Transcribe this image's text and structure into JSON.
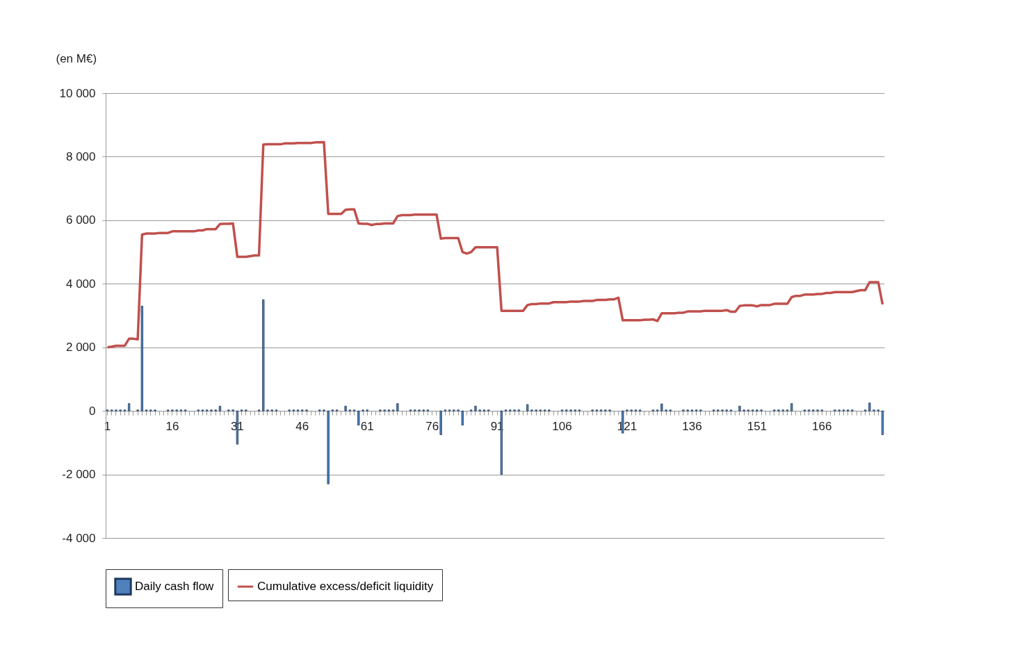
{
  "chart_data": {
    "type": "bar",
    "ylabel": "(en M€)",
    "categories": [
      "1",
      null,
      null,
      null,
      null,
      null,
      null,
      null,
      null,
      null,
      null,
      null,
      null,
      null,
      null,
      "16",
      null,
      null,
      null,
      null,
      null,
      null,
      null,
      null,
      null,
      null,
      null,
      null,
      null,
      null,
      "31",
      null,
      null,
      null,
      null,
      null,
      null,
      null,
      null,
      null,
      null,
      null,
      null,
      null,
      null,
      "46",
      null,
      null,
      null,
      null,
      null,
      null,
      null,
      null,
      null,
      null,
      null,
      null,
      null,
      null,
      "61",
      null,
      null,
      null,
      null,
      null,
      null,
      null,
      null,
      null,
      null,
      null,
      null,
      null,
      null,
      "76",
      null,
      null,
      null,
      null,
      null,
      null,
      null,
      null,
      null,
      null,
      null,
      null,
      null,
      null,
      "91",
      null,
      null,
      null,
      null,
      null,
      null,
      null,
      null,
      null,
      null,
      null,
      null,
      null,
      null,
      "106",
      null,
      null,
      null,
      null,
      null,
      null,
      null,
      null,
      null,
      null,
      null,
      null,
      null,
      null,
      "121",
      null,
      null,
      null,
      null,
      null,
      null,
      null,
      null,
      null,
      null,
      null,
      null,
      null,
      null,
      "136",
      null,
      null,
      null,
      null,
      null,
      null,
      null,
      null,
      null,
      null,
      null,
      null,
      null,
      null,
      "151",
      null,
      null,
      null,
      null,
      null,
      null,
      null,
      null,
      null,
      null,
      null,
      null,
      null,
      null,
      "166",
      null,
      null,
      null,
      null,
      null,
      null,
      null,
      null,
      null,
      null,
      null,
      null,
      null,
      null
    ],
    "series": [
      {
        "name": "Daily cash flow",
        "color": "#4f81bd",
        "values": [
          30,
          30,
          30,
          30,
          30,
          230,
          null,
          30,
          3300,
          30,
          30,
          30,
          null,
          null,
          30,
          30,
          30,
          30,
          30,
          null,
          null,
          30,
          30,
          30,
          30,
          30,
          150,
          null,
          30,
          30,
          -1050,
          30,
          30,
          null,
          null,
          30,
          3500,
          30,
          30,
          30,
          null,
          null,
          30,
          30,
          30,
          30,
          30,
          null,
          null,
          30,
          30,
          -2300,
          30,
          30,
          null,
          150,
          30,
          30,
          -450,
          30,
          30,
          null,
          null,
          30,
          30,
          30,
          30,
          230,
          null,
          null,
          30,
          30,
          30,
          30,
          30,
          null,
          null,
          -750,
          30,
          30,
          30,
          30,
          -450,
          null,
          30,
          150,
          30,
          30,
          30,
          null,
          null,
          -2000,
          30,
          30,
          30,
          30,
          null,
          200,
          30,
          30,
          30,
          30,
          30,
          null,
          null,
          30,
          30,
          30,
          30,
          30,
          null,
          null,
          30,
          30,
          30,
          30,
          30,
          null,
          null,
          -700,
          30,
          30,
          30,
          30,
          null,
          null,
          30,
          30,
          220,
          30,
          30,
          null,
          null,
          30,
          30,
          30,
          30,
          30,
          null,
          null,
          30,
          30,
          30,
          30,
          30,
          null,
          150,
          30,
          30,
          30,
          30,
          30,
          null,
          null,
          30,
          30,
          30,
          30,
          230,
          null,
          null,
          30,
          30,
          30,
          30,
          30,
          null,
          null,
          30,
          30,
          30,
          30,
          30,
          null,
          null,
          30,
          250,
          30,
          30,
          -750
        ]
      },
      {
        "name": "Cumulative excess/deficit liquidity",
        "type": "line",
        "color": "#c0504d",
        "values": [
          2000,
          2020,
          2050,
          2050,
          2050,
          2270,
          2270,
          2250,
          5550,
          5580,
          5580,
          5580,
          5600,
          5600,
          5600,
          5650,
          5650,
          5650,
          5650,
          5650,
          5650,
          5680,
          5680,
          5720,
          5720,
          5720,
          5880,
          5890,
          5890,
          5900,
          4850,
          4850,
          4850,
          4870,
          4890,
          4890,
          8380,
          8390,
          8390,
          8390,
          8390,
          8420,
          8420,
          8420,
          8430,
          8430,
          8430,
          8430,
          8450,
          8450,
          8460,
          6200,
          6200,
          6200,
          6200,
          6330,
          6340,
          6340,
          5900,
          5890,
          5890,
          5850,
          5880,
          5880,
          5900,
          5900,
          5900,
          6130,
          6160,
          6160,
          6160,
          6180,
          6180,
          6180,
          6180,
          6180,
          6180,
          5420,
          5440,
          5440,
          5440,
          5440,
          5000,
          4950,
          5000,
          5150,
          5150,
          5150,
          5150,
          5150,
          5150,
          3150,
          3150,
          3150,
          3150,
          3150,
          3150,
          3330,
          3360,
          3360,
          3380,
          3380,
          3380,
          3420,
          3420,
          3420,
          3420,
          3440,
          3440,
          3440,
          3460,
          3460,
          3460,
          3490,
          3490,
          3490,
          3510,
          3510,
          3560,
          2850,
          2850,
          2850,
          2850,
          2850,
          2870,
          2870,
          2880,
          2830,
          3070,
          3070,
          3070,
          3070,
          3090,
          3090,
          3130,
          3130,
          3130,
          3130,
          3150,
          3150,
          3150,
          3150,
          3150,
          3170,
          3120,
          3120,
          3300,
          3320,
          3320,
          3320,
          3290,
          3330,
          3330,
          3330,
          3370,
          3370,
          3370,
          3370,
          3580,
          3620,
          3620,
          3660,
          3660,
          3660,
          3680,
          3680,
          3710,
          3710,
          3740,
          3740,
          3740,
          3740,
          3740,
          3770,
          3800,
          3800,
          4050,
          4050,
          4050,
          3350
        ]
      }
    ],
    "ylim": [
      -4000,
      10000
    ],
    "yticks": [
      {
        "value": -4000,
        "label": "-4 000"
      },
      {
        "value": -2000,
        "label": "-2 000"
      },
      0,
      {
        "value": 2000,
        "label": "2 000"
      },
      {
        "value": 4000,
        "label": "4 000"
      },
      {
        "value": 6000,
        "label": "6 000"
      },
      {
        "value": 8000,
        "label": "8 000"
      },
      {
        "value": 10000,
        "label": "10 000"
      }
    ],
    "grid": "y",
    "legend": "bottom"
  }
}
